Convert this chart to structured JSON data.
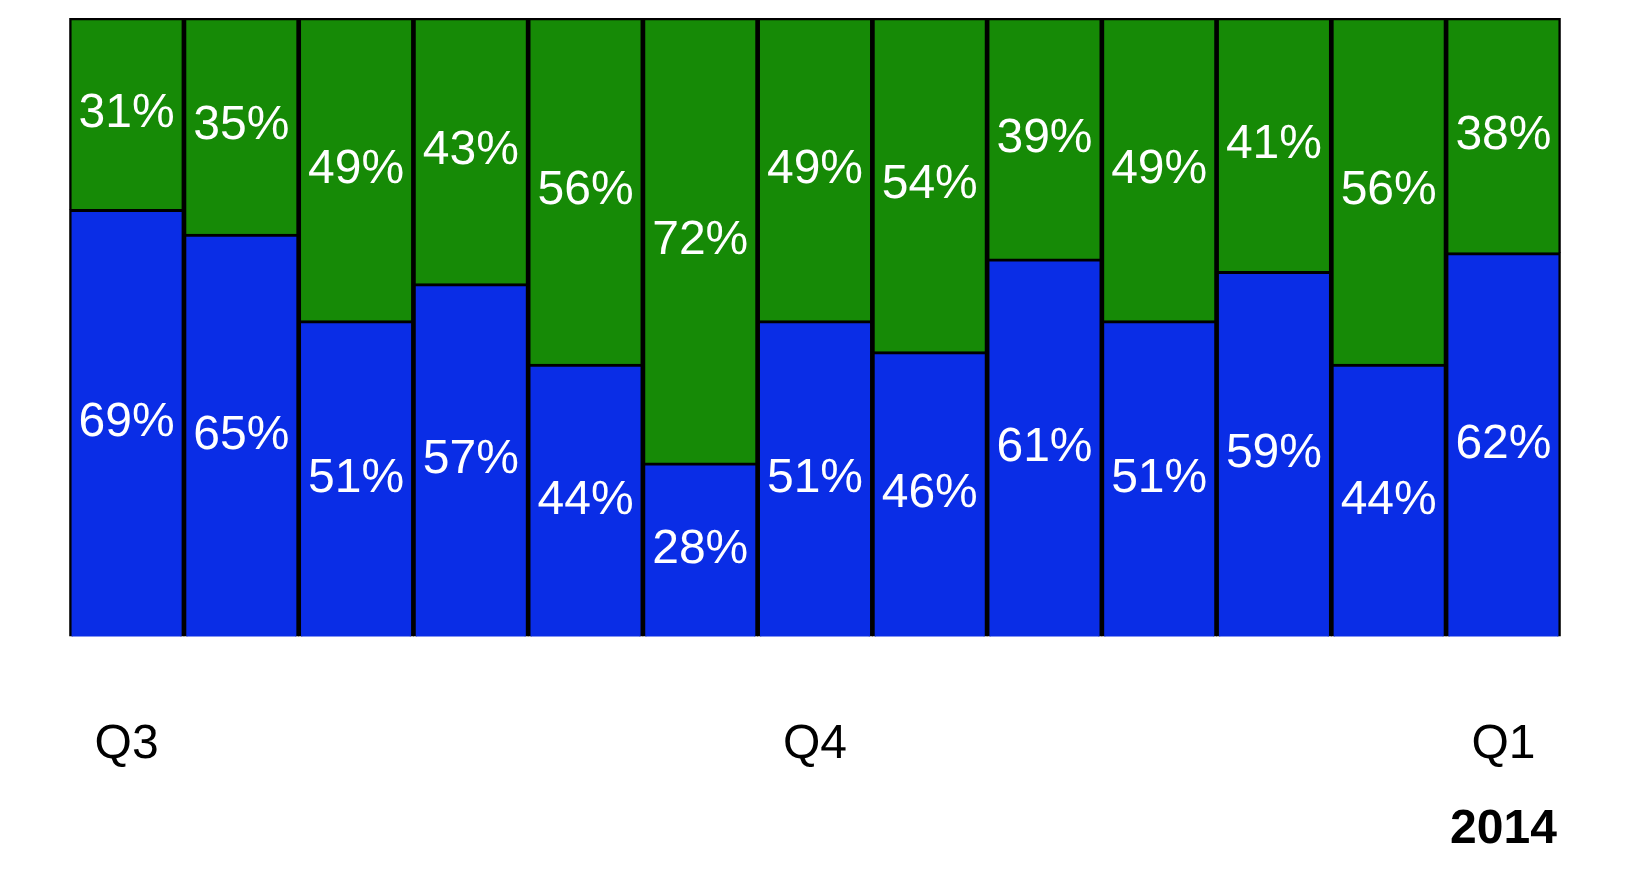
{
  "chart_data": {
    "type": "bar",
    "stacked": true,
    "legend": false,
    "grid": false,
    "categories": [
      "Q3",
      null,
      null,
      null,
      null,
      null,
      "Q4",
      null,
      null,
      null,
      null,
      null,
      "Q1"
    ],
    "annotations": [
      "2014"
    ],
    "series": [
      {
        "color": "#0a2de6",
        "values": [
          69,
          65,
          51,
          57,
          44,
          28,
          51,
          46,
          61,
          51,
          59,
          44,
          62
        ],
        "value_labels": [
          "69%",
          "65%",
          "51%",
          "57%",
          "44%",
          "28%",
          "51%",
          "46%",
          "61%",
          "51%",
          "59%",
          "44%",
          "62%"
        ]
      },
      {
        "color": "#168a06",
        "values": [
          31,
          35,
          49,
          43,
          56,
          72,
          49,
          54,
          39,
          49,
          41,
          56,
          38
        ],
        "value_labels": [
          "31%",
          "35%",
          "49%",
          "43%",
          "56%",
          "72%",
          "49%",
          "54%",
          "39%",
          "49%",
          "41%",
          "56%",
          "38%"
        ]
      }
    ]
  }
}
